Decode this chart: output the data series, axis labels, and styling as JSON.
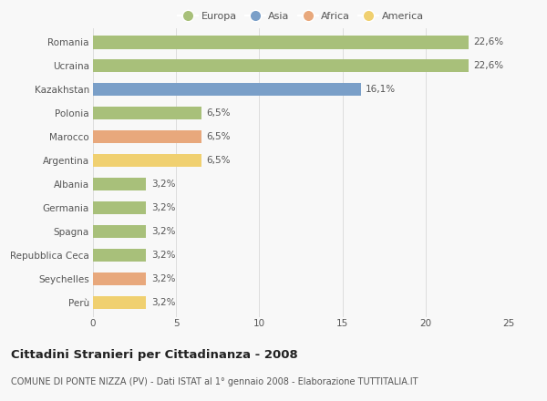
{
  "countries": [
    "Romania",
    "Ucraina",
    "Kazakhstan",
    "Polonia",
    "Marocco",
    "Argentina",
    "Albania",
    "Germania",
    "Spagna",
    "Repubblica Ceca",
    "Seychelles",
    "Perù"
  ],
  "values": [
    22.6,
    22.6,
    16.1,
    6.5,
    6.5,
    6.5,
    3.2,
    3.2,
    3.2,
    3.2,
    3.2,
    3.2
  ],
  "labels": [
    "22,6%",
    "22,6%",
    "16,1%",
    "6,5%",
    "6,5%",
    "6,5%",
    "3,2%",
    "3,2%",
    "3,2%",
    "3,2%",
    "3,2%",
    "3,2%"
  ],
  "continents": [
    "Europa",
    "Europa",
    "Asia",
    "Europa",
    "Africa",
    "America",
    "Europa",
    "Europa",
    "Europa",
    "Europa",
    "Africa",
    "America"
  ],
  "colors": {
    "Europa": "#a8c07a",
    "Asia": "#7a9fc8",
    "Africa": "#e8a87c",
    "America": "#f0d070"
  },
  "legend_order": [
    "Europa",
    "Asia",
    "Africa",
    "America"
  ],
  "xlim": [
    0,
    25
  ],
  "xticks": [
    0,
    5,
    10,
    15,
    20,
    25
  ],
  "title": "Cittadini Stranieri per Cittadinanza - 2008",
  "subtitle": "COMUNE DI PONTE NIZZA (PV) - Dati ISTAT al 1° gennaio 2008 - Elaborazione TUTTITALIA.IT",
  "background_color": "#f8f8f8",
  "grid_color": "#dddddd",
  "bar_height": 0.55,
  "title_fontsize": 9.5,
  "subtitle_fontsize": 7,
  "label_fontsize": 7.5,
  "tick_fontsize": 7.5,
  "legend_fontsize": 8
}
